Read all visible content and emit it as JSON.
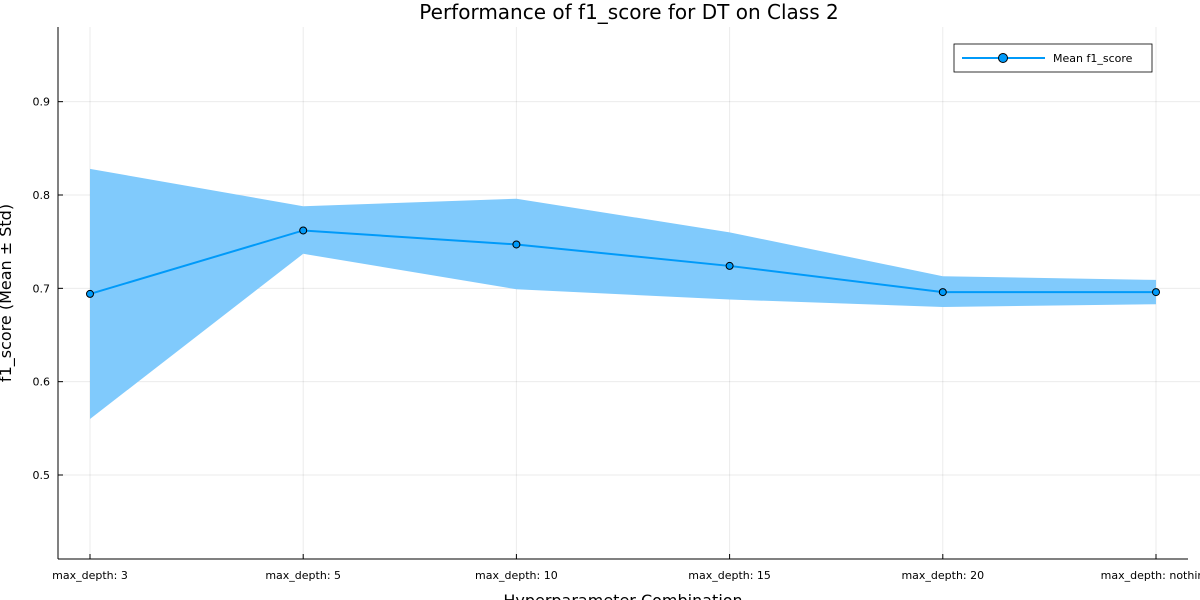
{
  "chart_data": {
    "type": "line",
    "title": "Performance of f1_score for DT on Class 2",
    "xlabel": "Hyperparameter Combination",
    "ylabel": "f1_score (Mean ± Std)",
    "categories": [
      "max_depth: 3",
      "max_depth: 5",
      "max_depth: 10",
      "max_depth: 15",
      "max_depth: 20",
      "max_depth: nothing"
    ],
    "ylim": [
      0.41,
      0.98
    ],
    "yticks": [
      0.5,
      0.6,
      0.7,
      0.8,
      0.9
    ],
    "ytick_labels": [
      "0.5",
      "0.6",
      "0.7",
      "0.8",
      "0.9"
    ],
    "grid": true,
    "legend_position": "top-right",
    "series": [
      {
        "name": "Mean f1_score",
        "values": [
          0.694,
          0.762,
          0.747,
          0.724,
          0.696,
          0.696
        ],
        "upper": [
          0.828,
          0.788,
          0.796,
          0.76,
          0.713,
          0.709
        ],
        "lower": [
          0.56,
          0.737,
          0.699,
          0.688,
          0.68,
          0.683
        ],
        "color": "#009af9",
        "band_color": "#80cafc"
      }
    ]
  }
}
